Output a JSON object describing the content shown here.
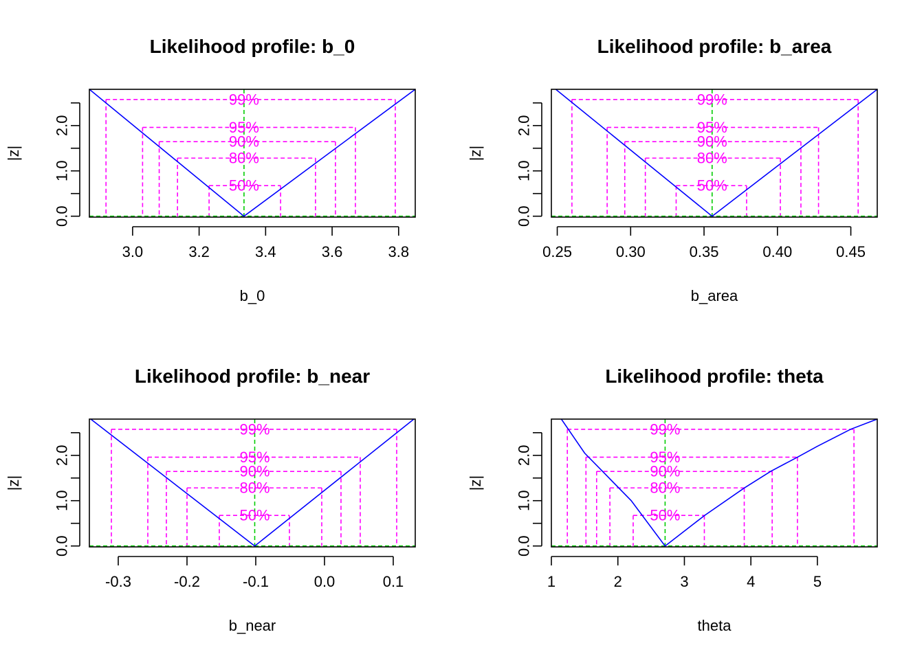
{
  "colors": {
    "profile": "#0000ff",
    "levels": "#ff00ff",
    "estimate": "#00cc00",
    "axis": "#000000"
  },
  "chart_data": [
    {
      "type": "line",
      "title": "Likelihood profile: b_0",
      "xlabel": "b_0",
      "ylabel": "|z|",
      "xlim": [
        2.87,
        3.85
      ],
      "ylim": [
        -0.02,
        2.8
      ],
      "xticks": [
        3.0,
        3.2,
        3.4,
        3.6,
        3.8
      ],
      "xtick_labels": [
        "3.0",
        "3.2",
        "3.4",
        "3.6",
        "3.8"
      ],
      "yticks": [
        0.0,
        0.5,
        1.0,
        1.5,
        2.0,
        2.5
      ],
      "ytick_labels": [
        "0.0",
        "",
        "1.0",
        "",
        "2.0",
        ""
      ],
      "estimate": 3.335,
      "profile": {
        "x": [
          2.87,
          3.335,
          3.85
        ],
        "y": [
          2.8,
          0.0,
          2.8
        ]
      },
      "levels": [
        {
          "label": "99%",
          "z": 2.576,
          "lower": 2.92,
          "upper": 3.79
        },
        {
          "label": "95%",
          "z": 1.96,
          "lower": 3.03,
          "upper": 3.67
        },
        {
          "label": "90%",
          "z": 1.645,
          "lower": 3.08,
          "upper": 3.61
        },
        {
          "label": "80%",
          "z": 1.282,
          "lower": 3.135,
          "upper": 3.55
        },
        {
          "label": "50%",
          "z": 0.674,
          "lower": 3.23,
          "upper": 3.445
        }
      ]
    },
    {
      "type": "line",
      "title": "Likelihood profile: b_area",
      "xlabel": "b_area",
      "ylabel": "|z|",
      "xlim": [
        0.246,
        0.468
      ],
      "ylim": [
        -0.02,
        2.8
      ],
      "xticks": [
        0.25,
        0.3,
        0.35,
        0.4,
        0.45
      ],
      "xtick_labels": [
        "0.25",
        "0.30",
        "0.35",
        "0.40",
        "0.45"
      ],
      "yticks": [
        0.0,
        0.5,
        1.0,
        1.5,
        2.0,
        2.5
      ],
      "ytick_labels": [
        "0.0",
        "",
        "1.0",
        "",
        "2.0",
        ""
      ],
      "estimate": 0.3555,
      "profile": {
        "x": [
          0.249,
          0.3555,
          0.468
        ],
        "y": [
          2.8,
          0.0,
          2.8
        ]
      },
      "levels": [
        {
          "label": "99%",
          "z": 2.576,
          "lower": 0.26,
          "upper": 0.455
        },
        {
          "label": "95%",
          "z": 1.96,
          "lower": 0.284,
          "upper": 0.428
        },
        {
          "label": "90%",
          "z": 1.645,
          "lower": 0.296,
          "upper": 0.416
        },
        {
          "label": "80%",
          "z": 1.282,
          "lower": 0.31,
          "upper": 0.402
        },
        {
          "label": "50%",
          "z": 0.674,
          "lower": 0.331,
          "upper": 0.379
        }
      ]
    },
    {
      "type": "line",
      "title": "Likelihood profile: b_near",
      "xlabel": "b_near",
      "ylabel": "|z|",
      "xlim": [
        -0.342,
        0.132
      ],
      "ylim": [
        -0.02,
        2.8
      ],
      "xticks": [
        -0.3,
        -0.2,
        -0.1,
        0.0,
        0.1
      ],
      "xtick_labels": [
        "-0.3",
        "-0.2",
        "-0.1",
        "0.0",
        "0.1"
      ],
      "yticks": [
        0.0,
        0.5,
        1.0,
        1.5,
        2.0,
        2.5
      ],
      "ytick_labels": [
        "0.0",
        "",
        "1.0",
        "",
        "2.0",
        ""
      ],
      "estimate": -0.1015,
      "profile": {
        "x": [
          -0.34,
          -0.1015,
          0.13
        ],
        "y": [
          2.8,
          0.0,
          2.8
        ]
      },
      "levels": [
        {
          "label": "99%",
          "z": 2.576,
          "lower": -0.31,
          "upper": 0.105
        },
        {
          "label": "95%",
          "z": 1.96,
          "lower": -0.257,
          "upper": 0.052
        },
        {
          "label": "90%",
          "z": 1.645,
          "lower": -0.23,
          "upper": 0.024
        },
        {
          "label": "80%",
          "z": 1.282,
          "lower": -0.2,
          "upper": -0.004
        },
        {
          "label": "50%",
          "z": 0.674,
          "lower": -0.153,
          "upper": -0.051
        }
      ]
    },
    {
      "type": "line",
      "title": "Likelihood profile: theta",
      "xlabel": "theta",
      "ylabel": "|z|",
      "xlim": [
        1.0,
        5.9
      ],
      "ylim": [
        -0.02,
        2.8
      ],
      "xticks": [
        1,
        2,
        3,
        4,
        5
      ],
      "xtick_labels": [
        "1",
        "2",
        "3",
        "4",
        "5"
      ],
      "yticks": [
        0.0,
        0.5,
        1.0,
        1.5,
        2.0,
        2.5
      ],
      "ytick_labels": [
        "0.0",
        "",
        "1.0",
        "",
        "2.0",
        ""
      ],
      "estimate": 2.71,
      "profile": {
        "x": [
          1.15,
          1.5,
          1.8,
          2.2,
          2.71,
          3.3,
          3.9,
          4.3,
          4.7,
          5.0,
          5.5,
          5.9
        ],
        "y": [
          2.8,
          2.05,
          1.6,
          1.0,
          0.0,
          0.67,
          1.28,
          1.65,
          1.96,
          2.2,
          2.576,
          2.8
        ]
      },
      "levels": [
        {
          "label": "99%",
          "z": 2.576,
          "lower": 1.24,
          "upper": 5.55
        },
        {
          "label": "95%",
          "z": 1.96,
          "lower": 1.52,
          "upper": 4.7
        },
        {
          "label": "90%",
          "z": 1.645,
          "lower": 1.68,
          "upper": 4.32
        },
        {
          "label": "80%",
          "z": 1.282,
          "lower": 1.88,
          "upper": 3.9
        },
        {
          "label": "50%",
          "z": 0.674,
          "lower": 2.23,
          "upper": 3.3
        }
      ]
    }
  ]
}
